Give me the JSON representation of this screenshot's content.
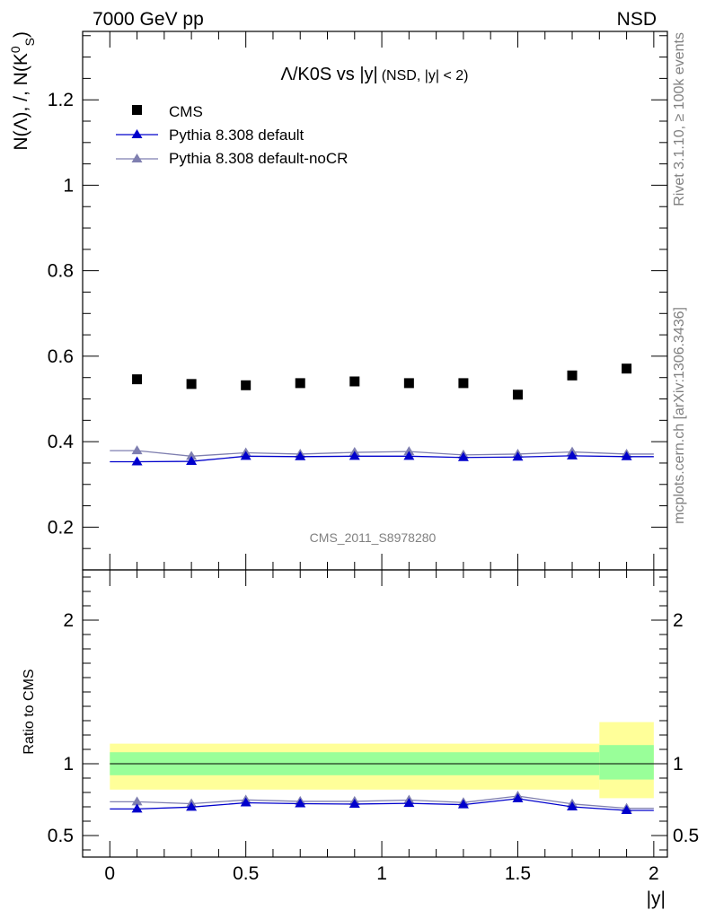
{
  "header": {
    "left": "7000 GeV pp",
    "right": "NSD"
  },
  "side_labels": {
    "rivet": "Rivet 3.1.10, ≥ 100k events",
    "mcplots": "mcplots.cern.ch [arXiv:1306.3436]"
  },
  "watermark": "CMS_2011_S8978280",
  "colors": {
    "cms": "#000000",
    "default": "#0000cc",
    "noCR": "#7f7fb0",
    "band_outer": "#ffff99",
    "band_inner": "#99ff99"
  },
  "chart_data": [
    {
      "type": "scatter",
      "title": "Λ/K0S vs |y|",
      "title_suffix": "(NSD, |y| < 2)",
      "ylabel": "N(Λ), /, N(K⁰S)",
      "xlim": [
        -0.1,
        2.05
      ],
      "ylim": [
        0.1,
        1.36
      ],
      "yticks": [
        0.2,
        0.4,
        0.6,
        0.8,
        1,
        1.2
      ],
      "ytick_labels": [
        "0.2",
        "0.4",
        "0.6",
        "0.8",
        "1",
        "1.2"
      ],
      "legend_position": "top-left",
      "x": [
        0.1,
        0.3,
        0.5,
        0.7,
        0.9,
        1.1,
        1.3,
        1.5,
        1.7,
        1.9
      ],
      "series": [
        {
          "name": "CMS",
          "marker": "square",
          "values": [
            0.546,
            0.535,
            0.532,
            0.537,
            0.541,
            0.537,
            0.537,
            0.51,
            0.555,
            0.571
          ]
        },
        {
          "name": "Pythia 8.308 default",
          "marker": "triangle",
          "values": [
            0.353,
            0.354,
            0.366,
            0.365,
            0.366,
            0.366,
            0.363,
            0.364,
            0.367,
            0.365
          ]
        },
        {
          "name": "Pythia 8.308 default-noCR",
          "marker": "triangle",
          "values": [
            0.379,
            0.366,
            0.374,
            0.371,
            0.375,
            0.377,
            0.369,
            0.371,
            0.376,
            0.371
          ]
        }
      ]
    },
    {
      "type": "line",
      "ylabel": "Ratio to CMS",
      "xlabel": "|y|",
      "xlim": [
        -0.1,
        2.05
      ],
      "ylim": [
        0.35,
        2.35
      ],
      "xticks": [
        0,
        0.5,
        1,
        1.5,
        2
      ],
      "xtick_labels": [
        "0",
        "0.5",
        "1",
        "1.5",
        "2"
      ],
      "yticks": [
        0.5,
        1,
        2
      ],
      "ytick_labels": [
        "0.5",
        "1",
        "2"
      ],
      "reference_line": 1,
      "bands": [
        {
          "x_range": [
            0,
            1.8
          ],
          "outer": [
            0.82,
            1.14
          ],
          "inner": [
            0.92,
            1.08
          ]
        },
        {
          "x_range": [
            1.8,
            2.0
          ],
          "outer": [
            0.76,
            1.29
          ],
          "inner": [
            0.89,
            1.13
          ]
        }
      ],
      "x": [
        0.1,
        0.3,
        0.5,
        0.7,
        0.9,
        1.1,
        1.3,
        1.5,
        1.7,
        1.9
      ],
      "series": [
        {
          "name": "Pythia 8.308 default",
          "values": [
            0.685,
            0.698,
            0.728,
            0.722,
            0.719,
            0.724,
            0.715,
            0.757,
            0.7,
            0.675
          ]
        },
        {
          "name": "Pythia 8.308 default-noCR",
          "values": [
            0.735,
            0.722,
            0.748,
            0.738,
            0.738,
            0.747,
            0.73,
            0.775,
            0.72,
            0.69
          ]
        }
      ]
    }
  ]
}
